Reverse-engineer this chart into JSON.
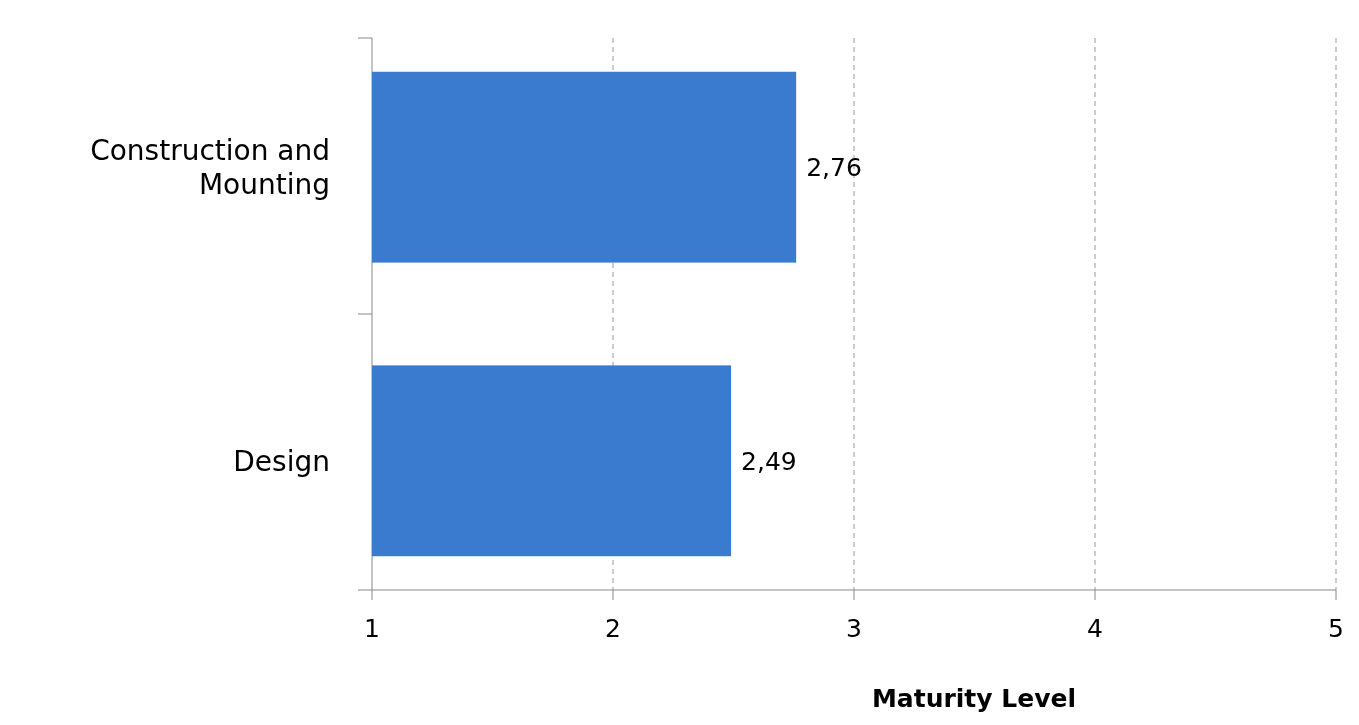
{
  "chart_data": {
    "type": "bar",
    "orientation": "horizontal",
    "xlabel": "Maturity Level",
    "categories": [
      "Construction and Mounting",
      "Design"
    ],
    "values": [
      2.76,
      2.49
    ],
    "value_labels": [
      "2,76",
      "2,49"
    ],
    "color": "#3a7bd0",
    "xlim": [
      1,
      5
    ],
    "xticks": [
      1,
      2,
      3,
      4,
      5
    ],
    "grid": "x"
  }
}
